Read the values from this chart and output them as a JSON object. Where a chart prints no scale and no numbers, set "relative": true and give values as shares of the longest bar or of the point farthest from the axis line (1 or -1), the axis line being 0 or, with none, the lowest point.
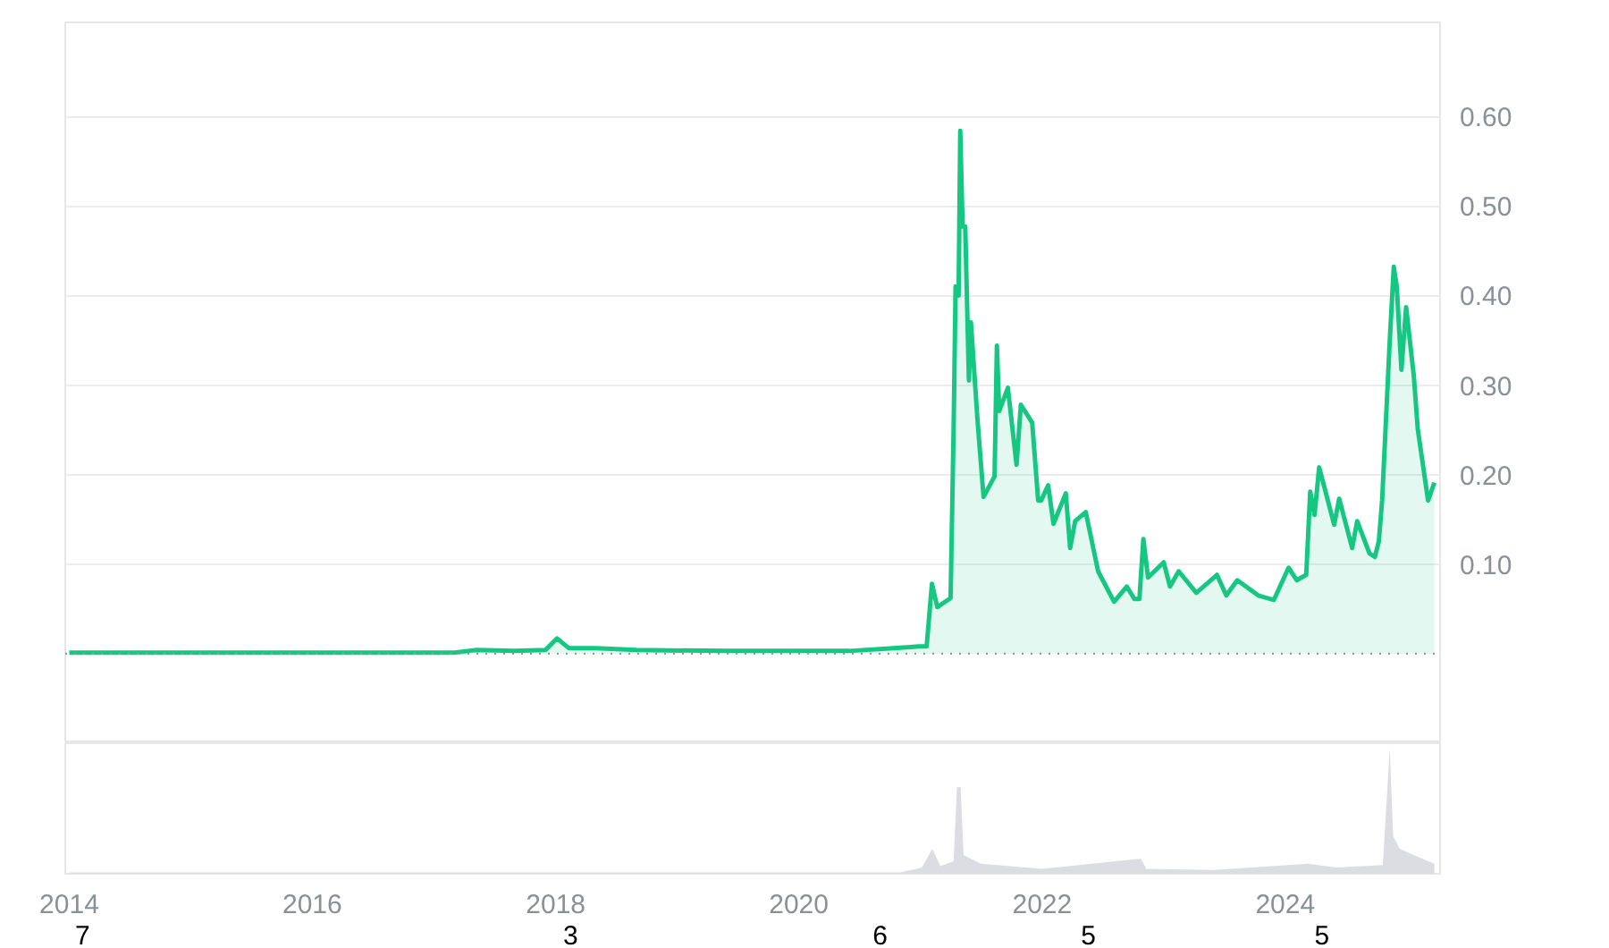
{
  "chart_data": [
    {
      "type": "area",
      "xlim": [
        "2013-12-20",
        "2025-04-10"
      ],
      "ylim": [
        -0.1,
        0.705
      ],
      "yticks": [
        {
          "value": 0.1,
          "label": "0.10"
        },
        {
          "value": 0.2,
          "label": "0.20"
        },
        {
          "value": 0.3,
          "label": "0.30"
        },
        {
          "value": 0.4,
          "label": "0.40"
        },
        {
          "value": 0.5,
          "label": "0.50"
        },
        {
          "value": 0.6,
          "label": "0.60"
        }
      ],
      "grid": "y",
      "tick_labels": "y",
      "ref_lines": [
        {
          "axis": "y",
          "value": 0,
          "label": null,
          "color": "#999999",
          "line_style": "dotted"
        }
      ],
      "series": [
        {
          "color": "#16c784",
          "x": [
            "2014-01-01",
            "2014-06-01",
            "2015-06-01",
            "2016-06-01",
            "2017-03-01",
            "2017-05-05",
            "2017-09-01",
            "2017-12-01",
            "2018-01-05",
            "2018-02-10",
            "2018-05-01",
            "2018-09-01",
            "2019-06-01",
            "2020-06-01",
            "2020-10-12",
            "2020-12-25",
            "2021-01-19",
            "2021-02-04",
            "2021-02-20",
            "2021-04-01",
            "2021-04-10",
            "2021-04-16",
            "2021-04-25",
            "2021-04-30",
            "2021-05-07",
            "2021-05-15",
            "2021-05-26",
            "2021-06-01",
            "2021-06-21",
            "2021-07-09",
            "2021-08-11",
            "2021-08-18",
            "2021-08-25",
            "2021-09-20",
            "2021-10-16",
            "2021-10-29",
            "2021-12-02",
            "2021-12-20",
            "2021-12-29",
            "2022-01-19",
            "2022-02-04",
            "2022-03-13",
            "2022-03-26",
            "2022-04-10",
            "2022-05-12",
            "2022-06-18",
            "2022-08-05",
            "2022-09-12",
            "2022-10-05",
            "2022-10-20",
            "2022-11-01",
            "2022-11-15",
            "2023-01-01",
            "2023-01-20",
            "2023-02-15",
            "2023-04-09",
            "2023-06-10",
            "2023-07-08",
            "2023-08-10",
            "2023-10-12",
            "2023-11-28",
            "2024-01-11",
            "2024-02-05",
            "2024-03-04",
            "2024-03-16",
            "2024-03-29",
            "2024-04-12",
            "2024-05-27",
            "2024-06-11",
            "2024-07-20",
            "2024-08-04",
            "2024-09-10",
            "2024-09-26",
            "2024-10-08",
            "2024-10-18",
            "2024-11-10",
            "2024-11-22",
            "2024-12-01",
            "2024-12-15",
            "2024-12-29",
            "2025-01-21",
            "2025-02-02",
            "2025-03-05",
            "2025-03-24"
          ],
          "values": [
            0.001,
            0.001,
            0.001,
            0.001,
            0.001,
            0.004,
            0.003,
            0.004,
            0.017,
            0.006,
            0.006,
            0.004,
            0.003,
            0.003,
            0.006,
            0.008,
            0.008,
            0.078,
            0.052,
            0.062,
            0.25,
            0.41,
            0.4,
            0.584,
            0.477,
            0.477,
            0.305,
            0.37,
            0.26,
            0.175,
            0.198,
            0.344,
            0.271,
            0.297,
            0.211,
            0.278,
            0.258,
            0.171,
            0.171,
            0.188,
            0.145,
            0.179,
            0.118,
            0.148,
            0.158,
            0.092,
            0.058,
            0.075,
            0.061,
            0.061,
            0.128,
            0.085,
            0.102,
            0.075,
            0.092,
            0.068,
            0.088,
            0.065,
            0.082,
            0.065,
            0.06,
            0.096,
            0.082,
            0.088,
            0.181,
            0.155,
            0.208,
            0.144,
            0.173,
            0.118,
            0.148,
            0.112,
            0.108,
            0.125,
            0.171,
            0.35,
            0.432,
            0.41,
            0.317,
            0.387,
            0.311,
            0.251,
            0.171,
            0.191
          ]
        }
      ]
    },
    {
      "type": "area",
      "relative": true,
      "xlim": [
        "2013-12-20",
        "2025-04-10"
      ],
      "tick_labels": "x",
      "grid": false,
      "xticks": [
        "2014",
        "2016",
        "2018",
        "2020",
        "2022",
        "2024"
      ],
      "annotations": [
        "7",
        "3",
        "6",
        "5",
        "5"
      ],
      "series": [
        {
          "color": "#dcdde2",
          "x": [
            "2014-01-01",
            "2020-11-01",
            "2021-01-05",
            "2021-02-05",
            "2021-03-01",
            "2021-04-10",
            "2021-04-20",
            "2021-05-01",
            "2021-05-10",
            "2021-07-01",
            "2022-01-01",
            "2022-10-25",
            "2022-11-10",
            "2023-06-01",
            "2024-03-10",
            "2024-06-01",
            "2024-10-20",
            "2024-11-10",
            "2024-11-20",
            "2024-12-10",
            "2025-01-20",
            "2025-03-24"
          ],
          "values": [
            0.01,
            0.01,
            0.05,
            0.2,
            0.06,
            0.1,
            0.69,
            0.69,
            0.15,
            0.08,
            0.04,
            0.12,
            0.04,
            0.03,
            0.08,
            0.05,
            0.07,
            1.0,
            0.3,
            0.2,
            0.15,
            0.08
          ]
        }
      ]
    }
  ]
}
